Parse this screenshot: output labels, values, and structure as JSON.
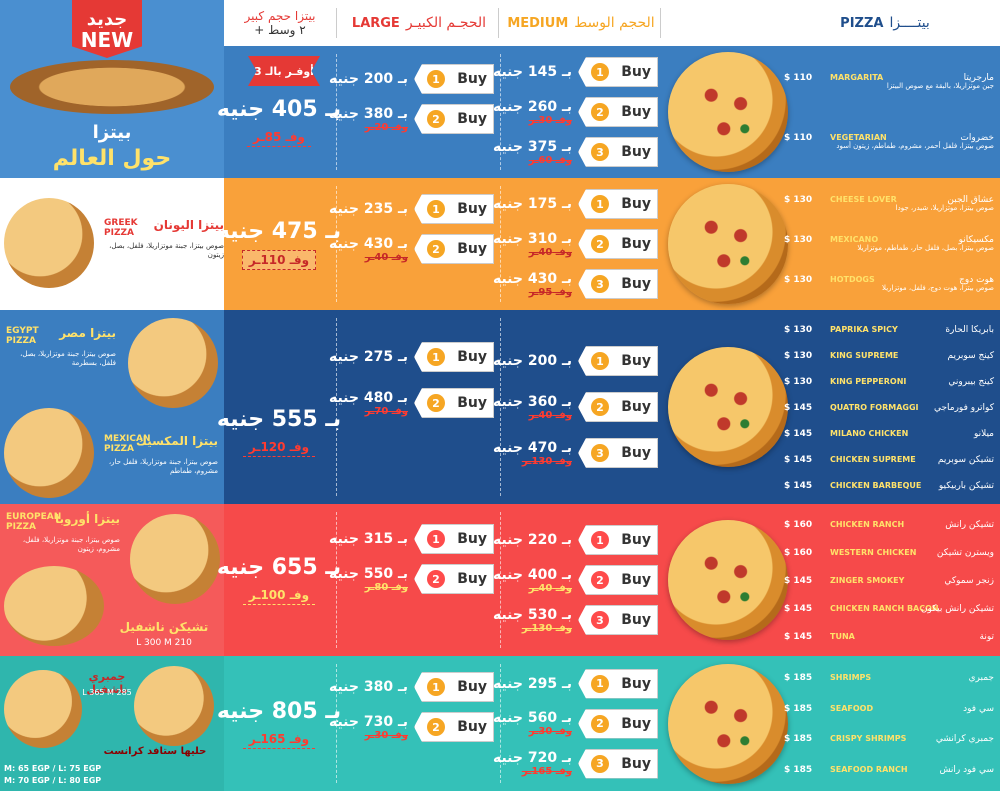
{
  "header": {
    "pizza_en": "PIZZA",
    "pizza_ar": "بيتــــزا",
    "medium_en": "MEDIUM",
    "medium_ar": "الحجم الوسط",
    "large_en": "LARGE",
    "large_ar": "الحجـم الكبيـر",
    "combo_line1": "بيتزا حجم كبير",
    "combo_line2": "+ ٢ وسط"
  },
  "colors": {
    "blue": "#3b7ec0",
    "orange": "#f9a13a",
    "navy": "#1f4e8c",
    "red": "#f64a4a",
    "teal": "#34c1b8",
    "price_red": "#ff3b30"
  },
  "buy_label": "Buy",
  "bands": [
    {
      "left": {
        "badge_line1": "جديد",
        "badge_line2": "NEW",
        "title_line1": "بيتزا",
        "title_line2": "حول العالم",
        "save_badge": "أوفـر بالـ 3"
      },
      "offer_price": "بـ 405 جنيه",
      "offer_save": "وفـ 85ـر",
      "large": [
        {
          "price": "بـ 200 جنيه",
          "save": "",
          "num": "1"
        },
        {
          "price": "بـ 380 جنيه",
          "save": "وفـ 20ـر",
          "num": "2"
        }
      ],
      "medium": [
        {
          "price": "بـ 145 جنيه",
          "save": "",
          "num": "1"
        },
        {
          "price": "بـ 260 جنيه",
          "save": "وفـ 30ـر",
          "num": "2"
        },
        {
          "price": "بـ 375 جنيه",
          "save": "وفـ 60ـر",
          "num": "3"
        }
      ],
      "menu": [
        {
          "price": "$ 110",
          "en": "MARGARITA",
          "ar": "مارجريتا",
          "desc": "جبن موتزاريلا، بالبقة مع صوص البيتزا"
        },
        {
          "price": "$ 110",
          "en": "VEGETARIAN",
          "ar": "خضروات",
          "desc": "صوص بيتزا، فلفل أحمر، مشروم، طماطم، زيتون أسود"
        }
      ]
    },
    {
      "left": {
        "en": "GREEK PIZZA",
        "ar": "بيتزا اليونان",
        "desc": "صوص بيتزا، جبنة موتزاريلا، فلفل، بصل، زيتون"
      },
      "offer_price": "بـ 475 جنيه",
      "offer_save": "وفـ 110ـر",
      "large": [
        {
          "price": "بـ 235 جنيه",
          "save": "",
          "num": "1"
        },
        {
          "price": "بـ 430 جنيه",
          "save": "وفـ 40ـر",
          "num": "2"
        }
      ],
      "medium": [
        {
          "price": "بـ 175 جنيه",
          "save": "",
          "num": "1"
        },
        {
          "price": "بـ 310 جنيه",
          "save": "وفـ 40ـر",
          "num": "2"
        },
        {
          "price": "بـ 430 جنيه",
          "save": "وفـ 95ـر",
          "num": "3"
        }
      ],
      "menu": [
        {
          "price": "$ 130",
          "en": "CHEESE LOVER",
          "ar": "عشاق الجبن",
          "desc": "صوص بيتزا، موتزاريلا، شيدر، جودا"
        },
        {
          "price": "$ 130",
          "en": "MEXICANO",
          "ar": "مكسيكانو",
          "desc": "صوص بيتزا، بصل، فلفل حار، طماطم، موتزاريلا"
        },
        {
          "price": "$ 130",
          "en": "HOTDOGS",
          "ar": "هوت دوج",
          "desc": "صوص بيتزا، هوت دوج، فلفل، موتزاريلا"
        }
      ]
    },
    {
      "left": {
        "item1_en": "EGYPT PIZZA",
        "item1_ar": "بيتزا مصر",
        "item1_desc": "صوص بيتزا، جبنة موتزاريلا، بصل، فلفل، بسطرمة",
        "item2_en": "MEXICAN PIZZA",
        "item2_ar": "بيتزا المكسيك",
        "item2_desc": "صوص بيتزا، جبنة موتزاريلا، فلفل حار، مشروم، طماطم"
      },
      "offer_price": "بـ 555 جنيه",
      "offer_save": "وفـ 120ـر",
      "large": [
        {
          "price": "بـ 275 جنيه",
          "save": "",
          "num": "1"
        },
        {
          "price": "بـ 480 جنيه",
          "save": "وفـ 70ـر",
          "num": "2"
        }
      ],
      "medium": [
        {
          "price": "بـ 200 جنيه",
          "save": "",
          "num": "1"
        },
        {
          "price": "بـ 360 جنيه",
          "save": "وفـ 40ـر",
          "num": "2"
        },
        {
          "price": "بـ 470 جنيه",
          "save": "وفـ 130ـر",
          "num": "3"
        }
      ],
      "menu": [
        {
          "price": "$ 130",
          "en": "PAPRIKA SPICY",
          "ar": "بابريكا الحارة",
          "desc": ""
        },
        {
          "price": "$ 130",
          "en": "KING SUPREME",
          "ar": "كينج سوبريم",
          "desc": ""
        },
        {
          "price": "$ 130",
          "en": "KING PEPPERONI",
          "ar": "كينج بيبروني",
          "desc": ""
        },
        {
          "price": "$ 145",
          "en": "QUATRO FORMAGGI",
          "ar": "كواترو فورماجي",
          "desc": ""
        },
        {
          "price": "$ 145",
          "en": "MILANO CHICKEN",
          "ar": "ميلانو",
          "desc": ""
        },
        {
          "price": "$ 145",
          "en": "CHICKEN SUPREME",
          "ar": "تشيكن سوبريم",
          "desc": ""
        },
        {
          "price": "$ 145",
          "en": "CHICKEN BARBEQUE",
          "ar": "تشيكن باربيكيو",
          "desc": ""
        }
      ]
    },
    {
      "left": {
        "en": "EUROPEAN PIZZA",
        "ar": "بيتزا أوروبا",
        "desc": "صوص بيتزا، جبنة موتزاريلا، فلفل، مشروم، زيتون",
        "name_ar": "تشيكن ناشفيل",
        "sizes": "L 300    M 210"
      },
      "offer_price": "بـ 655 جنيه",
      "offer_save": "وفـ 100ـر",
      "large": [
        {
          "price": "بـ 315 جنيه",
          "save": "",
          "num": "1"
        },
        {
          "price": "بـ 550 جنيه",
          "save": "وفـ 80ـر",
          "num": "2"
        }
      ],
      "medium": [
        {
          "price": "بـ 220 جنيه",
          "save": "",
          "num": "1"
        },
        {
          "price": "بـ 400 جنيه",
          "save": "وفـ 40ـر",
          "num": "2"
        },
        {
          "price": "بـ 530 جنيه",
          "save": "وفـ 130ـر",
          "num": "3"
        }
      ],
      "menu": [
        {
          "price": "$ 160",
          "en": "CHICKEN RANCH",
          "ar": "تشيكن رانش",
          "desc": ""
        },
        {
          "price": "$ 160",
          "en": "WESTERN CHICKEN",
          "ar": "ويسترن تشيكن",
          "desc": ""
        },
        {
          "price": "$ 145",
          "en": "ZINGER SMOKEY",
          "ar": "زنجر سموكي",
          "desc": ""
        },
        {
          "price": "$ 145",
          "en": "CHICKEN RANCH BACON",
          "ar": "تشيكن رانش بيكون",
          "desc": ""
        },
        {
          "price": "$ 145",
          "en": "TUNA",
          "ar": "تونة",
          "desc": ""
        }
      ]
    },
    {
      "left": {
        "name_ar": "جمبري ناشفيل",
        "sizes": "L 365   M 285",
        "crust_ar": "حليها ستافد كرانست",
        "crust1": "M: 65 EGP  /  L: 75 EGP",
        "crust2": "M: 70 EGP  /  L: 80 EGP"
      },
      "offer_price": "بـ 805 جنيه",
      "offer_save": "وفـ 165ـر",
      "large": [
        {
          "price": "بـ 380 جنيه",
          "save": "",
          "num": "1"
        },
        {
          "price": "بـ 730 جنيه",
          "save": "وفـ 30ـر",
          "num": "2"
        }
      ],
      "medium": [
        {
          "price": "بـ 295 جنيه",
          "save": "",
          "num": "1"
        },
        {
          "price": "بـ 560 جنيه",
          "save": "وفـ 30ـر",
          "num": "2"
        },
        {
          "price": "بـ 720 جنيه",
          "save": "وفـ 165ـر",
          "num": "3"
        }
      ],
      "menu": [
        {
          "price": "$ 185",
          "en": "SHRIMPS",
          "ar": "جمبري",
          "desc": ""
        },
        {
          "price": "$ 185",
          "en": "SEAFOOD",
          "ar": "سي فود",
          "desc": ""
        },
        {
          "price": "$ 185",
          "en": "CRISPY SHRIMPS",
          "ar": "جمبري كرانشي",
          "desc": ""
        },
        {
          "price": "$ 185",
          "en": "SEAFOOD RANCH",
          "ar": "سي فود رانش",
          "desc": ""
        }
      ]
    }
  ]
}
